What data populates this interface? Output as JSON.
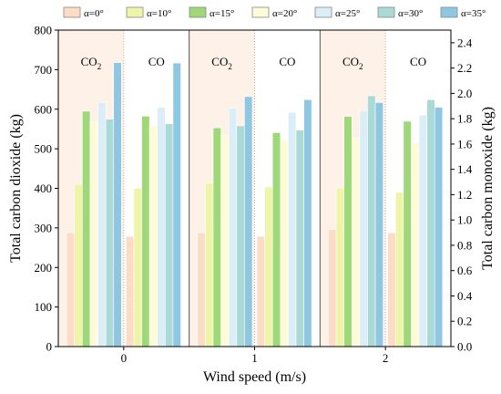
{
  "chart_data": {
    "type": "bar",
    "xlabel": "Wind speed (m/s)",
    "ylabel_left": "Total carbon dioxide (kg)",
    "ylabel_right": "Total carbon monoxide (kg)",
    "ylim_left": [
      0,
      800
    ],
    "ylim_right": [
      0,
      2.5
    ],
    "yticks_left": [
      "0",
      "100",
      "200",
      "300",
      "400",
      "500",
      "600",
      "700",
      "800"
    ],
    "yticks_right": [
      "0.0",
      "0.2",
      "0.4",
      "0.6",
      "0.8",
      "1.0",
      "1.2",
      "1.4",
      "1.6",
      "1.8",
      "2.0",
      "2.2",
      "2.4"
    ],
    "categories": [
      "0",
      "1",
      "2"
    ],
    "group_labels": {
      "co2": "CO",
      "co2_subscript": "2",
      "co": "CO"
    },
    "grid": false,
    "legend_position": "top",
    "series": [
      {
        "name": "α=0°",
        "color": "#fcdcc4",
        "co2": [
          288,
          288,
          296
        ],
        "co": [
          0.87,
          0.87,
          0.9
        ]
      },
      {
        "name": "α=10°",
        "color": "#eef5a8",
        "co2": [
          410,
          413,
          401
        ],
        "co": [
          1.25,
          1.26,
          1.22
        ]
      },
      {
        "name": "α=15°",
        "color": "#9ed878",
        "co2": [
          595,
          553,
          582
        ],
        "co": [
          1.82,
          1.69,
          1.78
        ]
      },
      {
        "name": "α=20°",
        "color": "#fdfbd8",
        "co2": [
          568,
          534,
          527
        ],
        "co": [
          1.74,
          1.63,
          1.61
        ]
      },
      {
        "name": "α=25°",
        "color": "#dbeef7",
        "co2": [
          617,
          603,
          597
        ],
        "co": [
          1.89,
          1.85,
          1.83
        ]
      },
      {
        "name": "α=30°",
        "color": "#a9dad6",
        "co2": [
          575,
          558,
          634
        ],
        "co": [
          1.76,
          1.71,
          1.95
        ]
      },
      {
        "name": "α=35°",
        "color": "#8fc7e3",
        "co2": [
          718,
          632,
          617
        ],
        "co": [
          2.24,
          1.95,
          1.89
        ]
      }
    ]
  }
}
